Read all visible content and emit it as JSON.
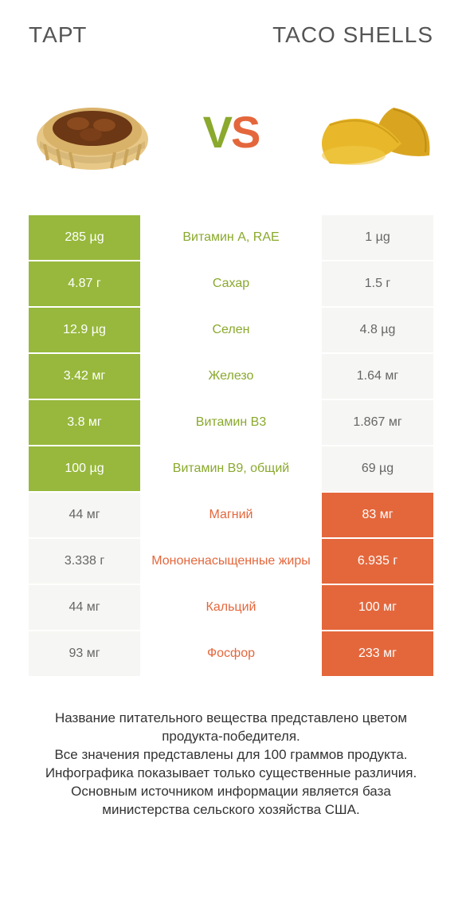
{
  "colors": {
    "left_bg": "#97b83c",
    "right_bg": "#e4673c",
    "center_left_text": "#8aa92d",
    "center_right_text": "#e4673c",
    "header_text": "#555555",
    "footer_text": "#333333",
    "cell_text": "#ffffff",
    "neutral_cell_bg": "#f6f6f4"
  },
  "header": {
    "left": "ТАРТ",
    "right": "TACO SHELLS"
  },
  "vs": {
    "v": "V",
    "s": "S"
  },
  "rows": [
    {
      "left": "285 µg",
      "center": "Витамин A, RAE",
      "right": "1 µg",
      "winner": "left"
    },
    {
      "left": "4.87 г",
      "center": "Сахар",
      "right": "1.5 г",
      "winner": "left"
    },
    {
      "left": "12.9 µg",
      "center": "Селен",
      "right": "4.8 µg",
      "winner": "left"
    },
    {
      "left": "3.42 мг",
      "center": "Железо",
      "right": "1.64 мг",
      "winner": "left"
    },
    {
      "left": "3.8 мг",
      "center": "Витамин B3",
      "right": "1.867 мг",
      "winner": "left"
    },
    {
      "left": "100 µg",
      "center": "Витамин B9, общий",
      "right": "69 µg",
      "winner": "left"
    },
    {
      "left": "44 мг",
      "center": "Магний",
      "right": "83 мг",
      "winner": "right"
    },
    {
      "left": "3.338 г",
      "center": "Мононенасыщенные жиры",
      "right": "6.935 г",
      "winner": "right"
    },
    {
      "left": "44 мг",
      "center": "Кальций",
      "right": "100 мг",
      "winner": "right"
    },
    {
      "left": "93 мг",
      "center": "Фосфор",
      "right": "233 мг",
      "winner": "right"
    }
  ],
  "footer": {
    "lines": [
      "Название питательного вещества представлено цветом продукта-победителя.",
      "Все значения представлены для 100 граммов продукта.",
      "Инфографика показывает только существенные различия.",
      "Основным источником информации является база министерства сельского хозяйства США."
    ]
  }
}
